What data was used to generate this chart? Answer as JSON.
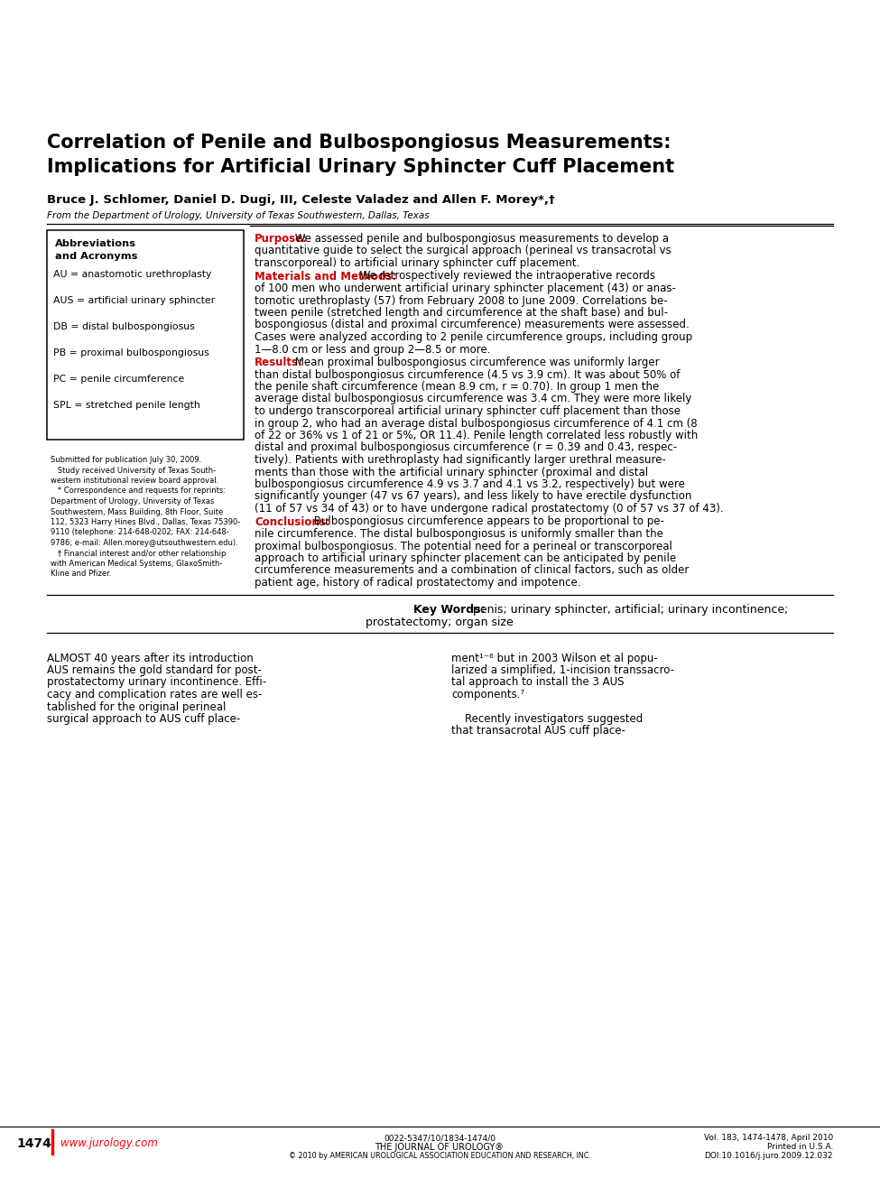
{
  "title_line1": "Correlation of Penile and Bulbospongiosus Measurements:",
  "title_line2": "Implications for Artificial Urinary Sphincter Cuff Placement",
  "authors": "Bruce J. Schlomer, Daniel D. Dugi, III, Celeste Valadez and Allen F. Morey*,†",
  "affiliation": "From the Department of Urology, University of Texas Southwestern, Dallas, Texas",
  "abbrev_title_line1": "Abbreviations",
  "abbrev_title_line2": "and Acronyms",
  "abbreviations": [
    "AU = anastomotic urethroplasty",
    "AUS = artificial urinary sphincter",
    "DB = distal bulbospongiosus",
    "PB = proximal bulbospongiosus",
    "PC = penile circumference",
    "SPL = stretched penile length"
  ],
  "footnote_lines": [
    "Submitted for publication July 30, 2009.",
    "   Study received University of Texas South-",
    "western institutional review board approval.",
    "   * Correspondence and requests for reprints:",
    "Department of Urology, University of Texas",
    "Southwestern, Mass Building, 8th Floor, Suite",
    "112, 5323 Harry Hines Blvd., Dallas, Texas 75390-",
    "9110 (telephone: 214-648-0202; FAX: 214-648-",
    "9786; e-mail: Allen.morey@utsouthwestern.edu).",
    "   † Financial interest and/or other relationship",
    "with American Medical Systems, GlaxoSmith-",
    "Kline and Pfizer."
  ],
  "purpose_label": "Purpose:",
  "purpose_lines": [
    " We assessed penile and bulbospongiosus measurements to develop a",
    "quantitative guide to select the surgical approach (perineal vs transacrotal vs",
    "transcorporeal) to artificial urinary sphincter cuff placement."
  ],
  "mm_label": "Materials and Methods:",
  "mm_lines": [
    " We retrospectively reviewed the intraoperative records",
    "of 100 men who underwent artificial urinary sphincter placement (43) or anas-",
    "tomotic urethroplasty (57) from February 2008 to June 2009. Correlations be-",
    "tween penile (stretched length and circumference at the shaft base) and bul-",
    "bospongiosus (distal and proximal circumference) measurements were assessed.",
    "Cases were analyzed according to 2 penile circumference groups, including group",
    "1—8.0 cm or less and group 2—8.5 or more."
  ],
  "results_label": "Results:",
  "results_lines": [
    " Mean proximal bulbospongiosus circumference was uniformly larger",
    "than distal bulbospongiosus circumference (4.5 vs 3.9 cm). It was about 50% of",
    "the penile shaft circumference (mean 8.9 cm, r = 0.70). In group 1 men the",
    "average distal bulbospongiosus circumference was 3.4 cm. They were more likely",
    "to undergo transcorporeal artificial urinary sphincter cuff placement than those",
    "in group 2, who had an average distal bulbospongiosus circumference of 4.1 cm (8",
    "of 22 or 36% vs 1 of 21 or 5%, OR 11.4). Penile length correlated less robustly with",
    "distal and proximal bulbospongiosus circumference (r = 0.39 and 0.43, respec-",
    "tively). Patients with urethroplasty had significantly larger urethral measure-",
    "ments than those with the artificial urinary sphincter (proximal and distal",
    "bulbospongiosus circumference 4.9 vs 3.7 and 4.1 vs 3.2, respectively) but were",
    "significantly younger (47 vs 67 years), and less likely to have erectile dysfunction",
    "(11 of 57 vs 34 of 43) or to have undergone radical prostatectomy (0 of 57 vs 37 of 43)."
  ],
  "conclusions_label": "Conclusions:",
  "conclusions_lines": [
    " Bulbospongiosus circumference appears to be proportional to pe-",
    "nile circumference. The distal bulbospongiosus is uniformly smaller than the",
    "proximal bulbospongiosus. The potential need for a perineal or transcorporeal",
    "approach to artificial urinary sphincter placement can be anticipated by penile",
    "circumference measurements and a combination of clinical factors, such as older",
    "patient age, history of radical prostatectomy and impotence."
  ],
  "keywords_bold": "Key Words:",
  "keywords_line1": "  penis; urinary sphincter, artificial; urinary incontinence;",
  "keywords_line2": "prostatectomy; organ size",
  "body_col1_lines": [
    "ALMOST 40 years after its introduction",
    "AUS remains the gold standard for post-",
    "prostatectomy urinary incontinence. Effi-",
    "cacy and complication rates are well es-",
    "tablished for the original perineal",
    "surgical approach to AUS cuff place-"
  ],
  "body_col2_lines": [
    "ment¹⁻⁶ but in 2003 Wilson et al popu-",
    "larized a simplified, 1-incision transsacro-",
    "tal approach to install the 3 AUS",
    "components.⁷",
    "",
    "    Recently investigators suggested",
    "that transacrotal AUS cuff place-"
  ],
  "footer_page": "1474",
  "footer_url": "www.jurology.com",
  "footer_mid1": "0022-5347/10/1834-1474/0",
  "footer_mid2": "THE JOURNAL OF UROLOGY®",
  "footer_mid3": "© 2010 by AMERICAN UROLOGICAL ASSOCIATION EDUCATION AND RESEARCH, INC.",
  "footer_right1": "Vol. 183, 1474-1478, April 2010",
  "footer_right2": "Printed in U.S.A.",
  "footer_right3": "DOI:10.1016/j.juro.2009.12.032",
  "bg_color": "#ffffff",
  "text_color": "#000000",
  "red_color": "#cc0000"
}
